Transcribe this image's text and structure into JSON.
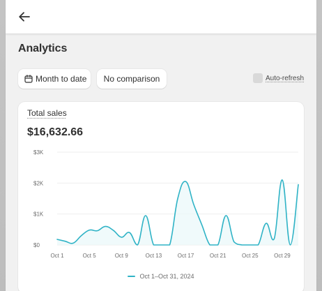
{
  "page": {
    "title": "Analytics"
  },
  "toolbar": {
    "date_range_label": "Month to date",
    "comparison_label": "No comparison",
    "auto_refresh_label": "Auto-refresh",
    "auto_refresh_checked": false
  },
  "card": {
    "label": "Total sales",
    "value": "$16,632.66"
  },
  "colors": {
    "series": "#2fb3c6",
    "series_fill": "#e9f8fa",
    "grid": "#eeeeee",
    "axis_text": "#6b6b6b"
  },
  "icons": {
    "back": "arrow-left-icon",
    "date_range": "calendar-icon"
  },
  "chart_data": {
    "type": "line",
    "title": "",
    "xlabel": "",
    "ylabel": "",
    "ylim": [
      0,
      3000
    ],
    "yticks": [
      {
        "value": 0,
        "label": "$0"
      },
      {
        "value": 1000,
        "label": "$1K"
      },
      {
        "value": 2000,
        "label": "$2K"
      },
      {
        "value": 3000,
        "label": "$3K"
      }
    ],
    "xticks": [
      "Oct 1",
      "Oct 5",
      "Oct 9",
      "Oct 13",
      "Oct 17",
      "Oct 21",
      "Oct 25",
      "Oct 29"
    ],
    "grid": true,
    "legend": {
      "position": "bottom",
      "entries": [
        "Oct 1–Oct 31, 2024"
      ]
    },
    "series": [
      {
        "name": "Oct 1–Oct 31, 2024",
        "x": [
          "Oct 1",
          "Oct 2",
          "Oct 3",
          "Oct 4",
          "Oct 5",
          "Oct 6",
          "Oct 7",
          "Oct 8",
          "Oct 9",
          "Oct 10",
          "Oct 11",
          "Oct 12",
          "Oct 13",
          "Oct 14",
          "Oct 15",
          "Oct 16",
          "Oct 17",
          "Oct 18",
          "Oct 19",
          "Oct 20",
          "Oct 21",
          "Oct 22",
          "Oct 23",
          "Oct 24",
          "Oct 25",
          "Oct 26",
          "Oct 27",
          "Oct 28",
          "Oct 29",
          "Oct 30",
          "Oct 31"
        ],
        "values": [
          180,
          120,
          60,
          300,
          480,
          460,
          600,
          470,
          250,
          400,
          0,
          950,
          0,
          0,
          0,
          1500,
          2050,
          1300,
          650,
          0,
          0,
          950,
          100,
          0,
          0,
          0,
          700,
          200,
          2100,
          0,
          1950
        ]
      }
    ]
  }
}
